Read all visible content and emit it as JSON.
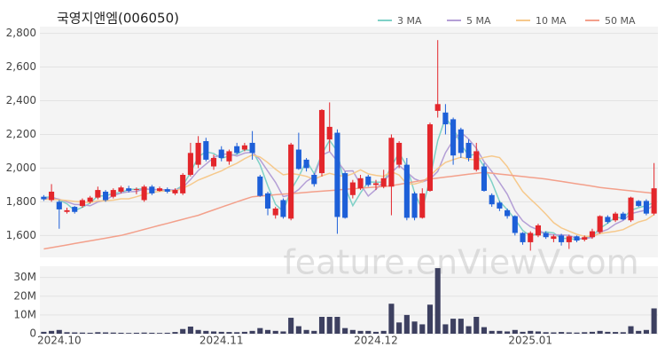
{
  "chart_data": [
    {
      "type": "candlestick",
      "title": "국영지앤엠(006050)",
      "watermark": "feature.enViewV.com",
      "up_color": "#e3262b",
      "down_color": "#1d5fd8",
      "legend": "top-right",
      "grid": true,
      "categories": [
        null,
        null,
        "2024.10",
        null,
        null,
        null,
        null,
        null,
        null,
        null,
        null,
        null,
        null,
        null,
        null,
        null,
        null,
        null,
        null,
        null,
        null,
        null,
        null,
        "2024.11",
        null,
        null,
        null,
        null,
        null,
        null,
        null,
        null,
        null,
        null,
        null,
        null,
        null,
        null,
        null,
        null,
        null,
        null,
        null,
        "2024.12",
        null,
        null,
        null,
        null,
        null,
        null,
        null,
        null,
        null,
        null,
        null,
        null,
        null,
        null,
        null,
        null,
        null,
        null,
        null,
        "2025.01",
        null,
        null,
        null,
        null,
        null,
        null,
        null,
        null,
        null,
        null,
        null,
        null,
        null,
        null,
        null,
        null
      ],
      "open": [
        1830,
        1810,
        1800,
        1740,
        1770,
        1775,
        1800,
        1825,
        1860,
        1830,
        1860,
        1880,
        1870,
        1810,
        1890,
        1865,
        1875,
        1850,
        1850,
        1960,
        2020,
        2160,
        2010,
        2110,
        2040,
        2130,
        2110,
        2150,
        1950,
        1850,
        1720,
        1810,
        1700,
        2110,
        2050,
        1960,
        1970,
        2170,
        2210,
        1970,
        1840,
        1880,
        1950,
        1900,
        1890,
        1890,
        2020,
        2020,
        1850,
        1705,
        1865,
        2340,
        2330,
        2290,
        2230,
        2150,
        1990,
        2010,
        1840,
        1795,
        1750,
        1715,
        1615,
        1560,
        1600,
        1615,
        1580,
        1600,
        1560,
        1595,
        1575,
        1590,
        1620,
        1710,
        1690,
        1730,
        1690,
        1805,
        1805,
        1730
      ],
      "high": [
        1840,
        1905,
        1810,
        1765,
        1775,
        1820,
        1835,
        1890,
        1870,
        1880,
        1895,
        1895,
        1885,
        1900,
        1900,
        1890,
        1885,
        1880,
        1970,
        2150,
        2190,
        2180,
        2080,
        2130,
        2110,
        2150,
        2150,
        2220,
        1960,
        1860,
        1770,
        1820,
        2150,
        2210,
        2060,
        1970,
        2350,
        2390,
        2230,
        1980,
        1930,
        1960,
        1960,
        1930,
        1990,
        2200,
        2160,
        2060,
        1860,
        1880,
        2270,
        2760,
        2380,
        2300,
        2240,
        2170,
        2150,
        2030,
        1850,
        1805,
        1760,
        1720,
        1620,
        1625,
        1670,
        1625,
        1605,
        1610,
        1605,
        1600,
        1600,
        1640,
        1720,
        1720,
        1740,
        1740,
        1830,
        1810,
        1815,
        2030
      ],
      "low": [
        1805,
        1800,
        1640,
        1730,
        1730,
        1765,
        1790,
        1815,
        1800,
        1820,
        1850,
        1855,
        1845,
        1800,
        1840,
        1860,
        1850,
        1840,
        1840,
        1950,
        2000,
        2040,
        1990,
        2040,
        2020,
        2080,
        2100,
        2050,
        1830,
        1720,
        1700,
        1700,
        1690,
        1990,
        1980,
        1890,
        1950,
        2100,
        1610,
        1700,
        1820,
        1870,
        1890,
        1870,
        1880,
        1720,
        2000,
        1690,
        1690,
        1700,
        1860,
        2300,
        2200,
        2020,
        2060,
        2040,
        1980,
        1860,
        1770,
        1745,
        1700,
        1600,
        1545,
        1510,
        1590,
        1580,
        1560,
        1540,
        1520,
        1560,
        1565,
        1580,
        1610,
        1670,
        1680,
        1690,
        1680,
        1770,
        1720,
        1720
      ],
      "close": [
        1815,
        1860,
        1755,
        1750,
        1740,
        1810,
        1825,
        1870,
        1810,
        1870,
        1885,
        1865,
        1875,
        1890,
        1850,
        1880,
        1860,
        1870,
        1960,
        2090,
        2150,
        2050,
        2060,
        2060,
        2100,
        2090,
        2135,
        2090,
        1835,
        1760,
        1760,
        1710,
        2140,
        1995,
        2000,
        1905,
        2345,
        2245,
        1710,
        1705,
        1915,
        1940,
        1900,
        1910,
        1940,
        2180,
        2150,
        1705,
        1705,
        1850,
        2260,
        2380,
        2260,
        2075,
        2090,
        2060,
        2100,
        1865,
        1785,
        1760,
        1715,
        1615,
        1560,
        1615,
        1660,
        1590,
        1595,
        1560,
        1595,
        1570,
        1590,
        1625,
        1715,
        1680,
        1730,
        1695,
        1825,
        1775,
        1730,
        1880
      ],
      "ylim": [
        1470,
        2840
      ],
      "yticks": [
        {
          "value": 1600,
          "label": "1,600"
        },
        {
          "value": 1800,
          "label": "1,800"
        },
        {
          "value": 2000,
          "label": "2,000"
        },
        {
          "value": 2200,
          "label": "2,200"
        },
        {
          "value": 2400,
          "label": "2,400"
        },
        {
          "value": 2600,
          "label": "2,600"
        },
        {
          "value": 2800,
          "label": "2,800"
        }
      ],
      "series": [
        {
          "name": "3 MA",
          "color": "#7fd1c7",
          "values": [
            1825,
            1830,
            1810,
            1788,
            1748,
            1767,
            1792,
            1835,
            1835,
            1850,
            1855,
            1873,
            1875,
            1877,
            1872,
            1873,
            1863,
            1870,
            1897,
            1973,
            2067,
            2097,
            2087,
            2057,
            2073,
            2083,
            2108,
            2105,
            2020,
            1895,
            1785,
            1743,
            1870,
            1948,
            2045,
            1967,
            2083,
            2165,
            2100,
            1887,
            1777,
            1853,
            1918,
            1917,
            1917,
            2010,
            2090,
            2012,
            1853,
            1753,
            1938,
            2163,
            2300,
            2238,
            2142,
            2075,
            2083,
            2008,
            1917,
            1803,
            1753,
            1697,
            1630,
            1597,
            1612,
            1622,
            1615,
            1582,
            1583,
            1575,
            1585,
            1595,
            1643,
            1673,
            1708,
            1702,
            1750,
            1765,
            1777,
            1795
          ]
        },
        {
          "name": "5 MA",
          "color": "#b49fd6",
          "values": [
            1820,
            1825,
            1815,
            1800,
            1784,
            1783,
            1776,
            1799,
            1811,
            1837,
            1852,
            1860,
            1861,
            1877,
            1873,
            1872,
            1871,
            1870,
            1884,
            1932,
            1986,
            2024,
            2062,
            2082,
            2084,
            2072,
            2089,
            2095,
            2050,
            1982,
            1916,
            1831,
            1841,
            1873,
            1921,
            1950,
            2077,
            2098,
            2041,
            1982,
            1984,
            1903,
            1834,
            1874,
            1921,
            1974,
            2016,
            1977,
            1936,
            1918,
            1934,
            1980,
            2091,
            2165,
            2213,
            2173,
            2117,
            2038,
            1980,
            1914,
            1845,
            1748,
            1687,
            1653,
            1633,
            1608,
            1604,
            1604,
            1600,
            1582,
            1582,
            1588,
            1619,
            1636,
            1668,
            1689,
            1729,
            1741,
            1751,
            1781
          ]
        },
        {
          "name": "10 MA",
          "color": "#f6c98c",
          "values": [
            1815,
            1815,
            1812,
            1808,
            1802,
            1799,
            1795,
            1805,
            1806,
            1810,
            1818,
            1818,
            1830,
            1844,
            1855,
            1862,
            1865,
            1865,
            1880,
            1902,
            1929,
            1947,
            1966,
            1983,
            2008,
            2029,
            2056,
            2078,
            2066,
            2033,
            1994,
            1960,
            1968,
            1961,
            1951,
            1933,
            1954,
            1969,
            1957,
            1951,
            1967,
            1990,
            1966,
            1957,
            1951,
            1979,
            1959,
            1905,
            1905,
            1919,
            1954,
            1998,
            2034,
            2050,
            2065,
            2053,
            2048,
            2064,
            2072,
            2063,
            2009,
            1932,
            1862,
            1816,
            1773,
            1726,
            1676,
            1645,
            1626,
            1607,
            1595,
            1596,
            1611,
            1618,
            1625,
            1635,
            1658,
            1680,
            1693,
            1724
          ]
        },
        {
          "name": "50 MA",
          "color": "#f3a08b",
          "values": [
            1520,
            1528,
            1536,
            1544,
            1552,
            1560,
            1568,
            1576,
            1584,
            1592,
            1600,
            1612,
            1624,
            1636,
            1648,
            1660,
            1672,
            1684,
            1696,
            1708,
            1720,
            1736,
            1752,
            1768,
            1784,
            1800,
            1815,
            1830,
            1834,
            1838,
            1842,
            1845,
            1849,
            1852,
            1856,
            1860,
            1863,
            1867,
            1870,
            1874,
            1877,
            1881,
            1884,
            1888,
            1891,
            1895,
            1903,
            1911,
            1919,
            1927,
            1935,
            1941,
            1947,
            1952,
            1958,
            1964,
            1969,
            1975,
            1970,
            1965,
            1960,
            1955,
            1950,
            1945,
            1940,
            1935,
            1928,
            1921,
            1914,
            1907,
            1900,
            1893,
            1885,
            1880,
            1875,
            1870,
            1865,
            1860,
            1855,
            1850
          ]
        }
      ]
    },
    {
      "type": "bar",
      "color": "#3d4060",
      "grid": true,
      "values": [
        1000000,
        1500000,
        2000000,
        800000,
        700000,
        600000,
        500000,
        800000,
        700000,
        600000,
        500000,
        400000,
        500000,
        600000,
        500000,
        400000,
        500000,
        900000,
        2500000,
        3800000,
        2000000,
        1500000,
        1200000,
        1000000,
        900000,
        800000,
        1000000,
        1500000,
        3000000,
        2000000,
        1500000,
        1200000,
        8500000,
        4000000,
        2000000,
        1500000,
        9000000,
        9000000,
        9000000,
        3000000,
        2000000,
        1500000,
        1500000,
        1000000,
        1500000,
        16000000,
        6000000,
        10000000,
        6500000,
        5000000,
        15500000,
        35000000,
        5000000,
        8000000,
        8000000,
        4000000,
        9000000,
        3500000,
        1500000,
        1500000,
        1200000,
        2000000,
        1000000,
        1500000,
        1200000,
        800000,
        700000,
        900000,
        700000,
        600000,
        800000,
        1000000,
        1500000,
        1000000,
        900000,
        800000,
        4000000,
        1500000,
        2000000,
        13500000
      ],
      "ylim": [
        0,
        36000000
      ],
      "yticks": [
        0,
        {
          "value": 10000000,
          "label": "10M"
        },
        {
          "value": 20000000,
          "label": "20M"
        },
        {
          "value": 30000000,
          "label": "30M"
        }
      ]
    }
  ]
}
